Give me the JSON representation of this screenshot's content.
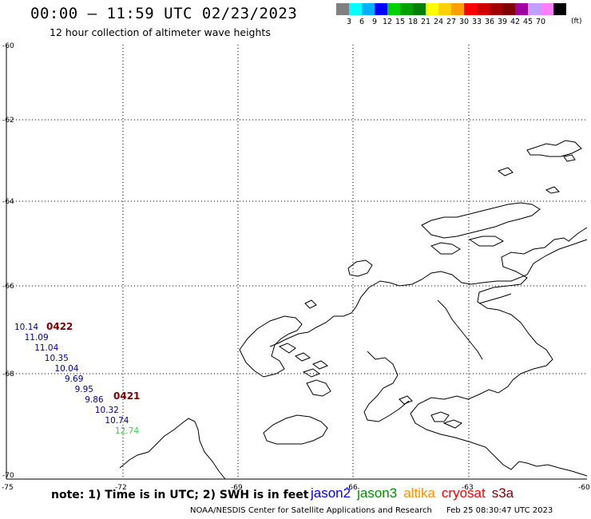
{
  "header": {
    "title": "00:00 – 11:59 UTC 02/23/2023",
    "subtitle": "12 hour collection of altimeter wave heights"
  },
  "colorbar": {
    "colors": [
      "#808080",
      "#00ffff",
      "#00b0ff",
      "#0000ff",
      "#00d000",
      "#00a000",
      "#008000",
      "#ffff00",
      "#ffd000",
      "#ffa000",
      "#ff0000",
      "#d00000",
      "#a00000",
      "#800000",
      "#a000a0",
      "#c0a0ff",
      "#ff80ff",
      "#000000"
    ],
    "labels": [
      "3",
      "6",
      "9",
      "12",
      "15",
      "18",
      "21",
      "24",
      "27",
      "30",
      "33",
      "36",
      "39",
      "42",
      "45",
      "70"
    ],
    "unit": "(ft)"
  },
  "axes": {
    "lat_labels": [
      "-60",
      "-62",
      "-64",
      "-66",
      "-68",
      "-70"
    ],
    "lon_labels": [
      "-75",
      "-72",
      "-69",
      "-66",
      "-63",
      "-60"
    ]
  },
  "tracks": [
    {
      "pass_label": "0422",
      "pass_color": "#800000",
      "values": [
        {
          "text": "10.14",
          "color": "#0000a0"
        },
        {
          "text": "11.09",
          "color": "#0000a0"
        },
        {
          "text": "11.04",
          "color": "#0000a0"
        },
        {
          "text": "10.35",
          "color": "#0000a0"
        },
        {
          "text": "10.04",
          "color": "#0000a0"
        },
        {
          "text": "9.69",
          "color": "#0000a0"
        },
        {
          "text": "9.95",
          "color": "#0000a0"
        },
        {
          "text": "9.86",
          "color": "#0000a0"
        },
        {
          "text": "10.32",
          "color": "#0000a0"
        },
        {
          "text": "10.74",
          "color": "#0000a0"
        },
        {
          "text": "12.74",
          "color": "#40d040"
        }
      ]
    },
    {
      "pass_label": "0421",
      "pass_color": "#800000"
    }
  ],
  "footer": {
    "note": "note: 1) Time is in UTC; 2) SWH is in feet",
    "satellites": [
      {
        "name": "jason2",
        "color": "#0000ff"
      },
      {
        "name": "jason3",
        "color": "#009000"
      },
      {
        "name": "altika",
        "color": "#ff9000"
      },
      {
        "name": "cryosat",
        "color": "#ff0000"
      },
      {
        "name": "s3a",
        "color": "#800000"
      }
    ],
    "credit": "NOAA/NESDIS Center for Satellite Applications and Research",
    "timestamp": "Feb 25 08:30:47 UTC 2023"
  }
}
